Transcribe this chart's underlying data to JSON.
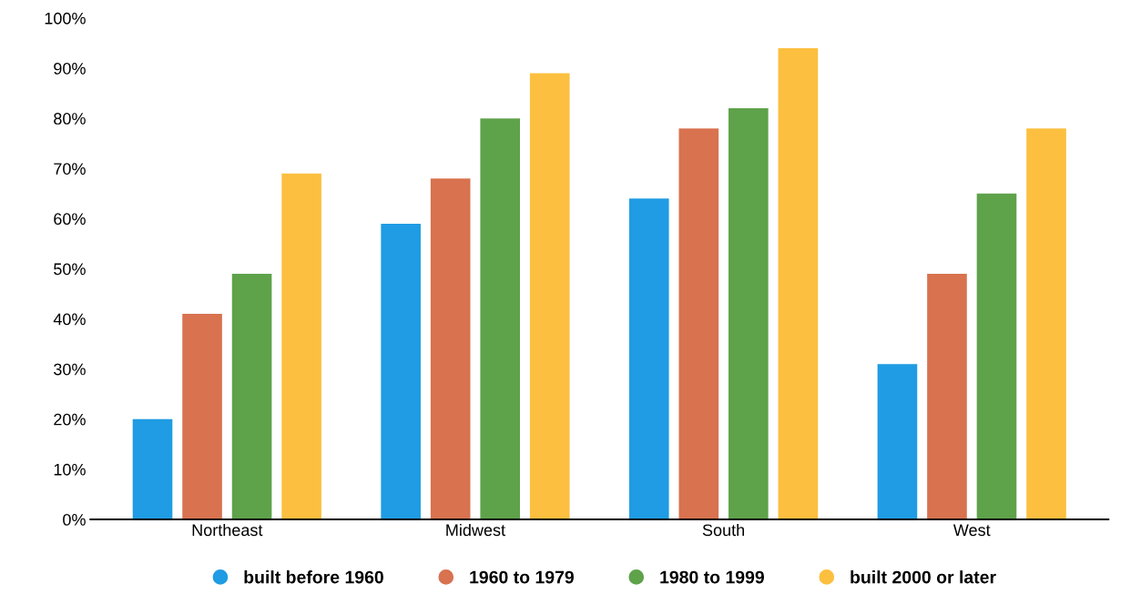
{
  "chart_data": {
    "type": "bar",
    "categories": [
      "Northeast",
      "Midwest",
      "South",
      "West"
    ],
    "series": [
      {
        "name": "built before 1960",
        "color": "#1f9ce3",
        "values": [
          20,
          59,
          64,
          31
        ]
      },
      {
        "name": "1960 to 1979",
        "color": "#d8724f",
        "values": [
          41,
          68,
          78,
          49
        ]
      },
      {
        "name": "1980 to 1999",
        "color": "#5ea24a",
        "values": [
          49,
          80,
          82,
          65
        ]
      },
      {
        "name": "built 2000 or later",
        "color": "#fcbf3f",
        "values": [
          69,
          89,
          94,
          78
        ]
      }
    ],
    "ylim": [
      0,
      100
    ],
    "yticks": [
      {
        "value": 0,
        "label": "0%"
      },
      {
        "value": 10,
        "label": "10%"
      },
      {
        "value": 20,
        "label": "20%"
      },
      {
        "value": 30,
        "label": "30%"
      },
      {
        "value": 40,
        "label": "40%"
      },
      {
        "value": 50,
        "label": "50%"
      },
      {
        "value": 60,
        "label": "60%"
      },
      {
        "value": 70,
        "label": "70%"
      },
      {
        "value": 80,
        "label": "80%"
      },
      {
        "value": 90,
        "label": "90%"
      },
      {
        "value": 100,
        "label": "100%"
      }
    ],
    "grid": false,
    "legend": "bottom"
  }
}
